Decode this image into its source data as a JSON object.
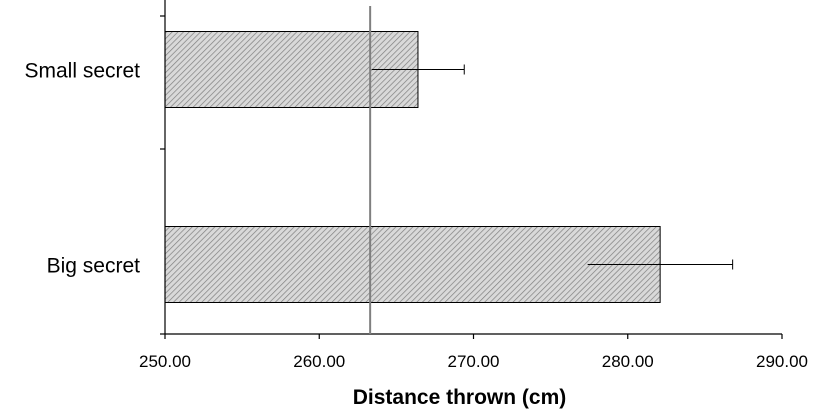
{
  "chart_data": {
    "type": "bar",
    "orientation": "horizontal",
    "categories": [
      "Small secret",
      "Big secret"
    ],
    "values": [
      266.4,
      282.1
    ],
    "error_minus": [
      3.0,
      4.7
    ],
    "error_plus": [
      3.0,
      4.7
    ],
    "reference_line": 263.3,
    "title": "",
    "xlabel": "Distance thrown (cm)",
    "ylabel": "",
    "xlim": [
      250,
      290
    ],
    "xticks": [
      "250.00",
      "260.00",
      "270.00",
      "280.00",
      "290.00"
    ],
    "grid": false,
    "legend": "none",
    "bar_fill": "hatched",
    "colors": {
      "bar_fill": "#d9d9d9",
      "bar_hatch": "#7f7f7f",
      "bar_edge": "#000000",
      "axis": "#000000",
      "reference_line": "#7f7f7f",
      "text": "#000000"
    }
  }
}
